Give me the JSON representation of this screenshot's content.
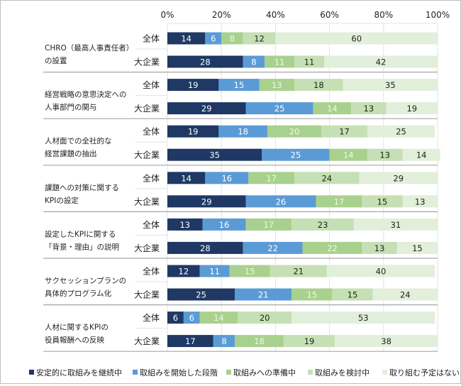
{
  "chart_data": {
    "type": "bar",
    "orientation": "horizontal",
    "stacked": true,
    "xlim": [
      0,
      100
    ],
    "x_ticks": [
      "0%",
      "20%",
      "40%",
      "60%",
      "80%",
      "100%"
    ],
    "grid": true,
    "legend_position": "bottom",
    "series": [
      {
        "name": "安定的に取組みを継続中",
        "color": "#1f3864",
        "label_color": "#ffffff"
      },
      {
        "name": "取組みを開始した段階",
        "color": "#5b9bd5",
        "label_color": "#ffffff"
      },
      {
        "name": "取組みへの準備中",
        "color": "#a9d18e",
        "label_color": "#eef6e8"
      },
      {
        "name": "取組みを検討中",
        "color": "#c5e0b4",
        "label_color": "#222222"
      },
      {
        "name": "取り組む予定はない",
        "color": "#e2efda",
        "label_color": "#222222"
      }
    ],
    "groups": [
      {
        "label": [
          "CHRO（最高人事責任者）",
          "の設置"
        ],
        "rows": [
          {
            "label": "全体",
            "values": [
              14,
              6,
              8,
              12,
              60
            ]
          },
          {
            "label": "大企業",
            "values": [
              28,
              8,
              11,
              11,
              42
            ]
          }
        ]
      },
      {
        "label": [
          "経営戦略の意思決定への",
          "人事部門の関与"
        ],
        "rows": [
          {
            "label": "全体",
            "values": [
              19,
              15,
              13,
              18,
              35
            ]
          },
          {
            "label": "大企業",
            "values": [
              29,
              25,
              14,
              13,
              19
            ]
          }
        ]
      },
      {
        "label": [
          "人材面での全社的な",
          "経営課題の抽出"
        ],
        "rows": [
          {
            "label": "全体",
            "values": [
              19,
              18,
              20,
              17,
              25
            ]
          },
          {
            "label": "大企業",
            "values": [
              35,
              25,
              14,
              13,
              14
            ]
          }
        ]
      },
      {
        "label": [
          "課題への対策に関する",
          "KPIの設定"
        ],
        "rows": [
          {
            "label": "全体",
            "values": [
              14,
              16,
              17,
              24,
              29
            ]
          },
          {
            "label": "大企業",
            "values": [
              29,
              26,
              17,
              15,
              13
            ]
          }
        ]
      },
      {
        "label": [
          "設定したKPIに関する",
          "「背景・理由」の説明"
        ],
        "rows": [
          {
            "label": "全体",
            "values": [
              13,
              16,
              17,
              23,
              31
            ]
          },
          {
            "label": "大企業",
            "values": [
              28,
              22,
              22,
              13,
              15
            ]
          }
        ]
      },
      {
        "label": [
          "サクセッションプランの",
          "具体的プログラム化"
        ],
        "rows": [
          {
            "label": "全体",
            "values": [
              12,
              11,
              15,
              21,
              40
            ]
          },
          {
            "label": "大企業",
            "values": [
              25,
              21,
              15,
              15,
              24
            ]
          }
        ]
      },
      {
        "label": [
          "人材に関するKPIの",
          "役員報酬への反映"
        ],
        "rows": [
          {
            "label": "全体",
            "values": [
              6,
              6,
              14,
              20,
              53
            ]
          },
          {
            "label": "大企業",
            "values": [
              17,
              8,
              18,
              19,
              38
            ]
          }
        ]
      }
    ]
  }
}
